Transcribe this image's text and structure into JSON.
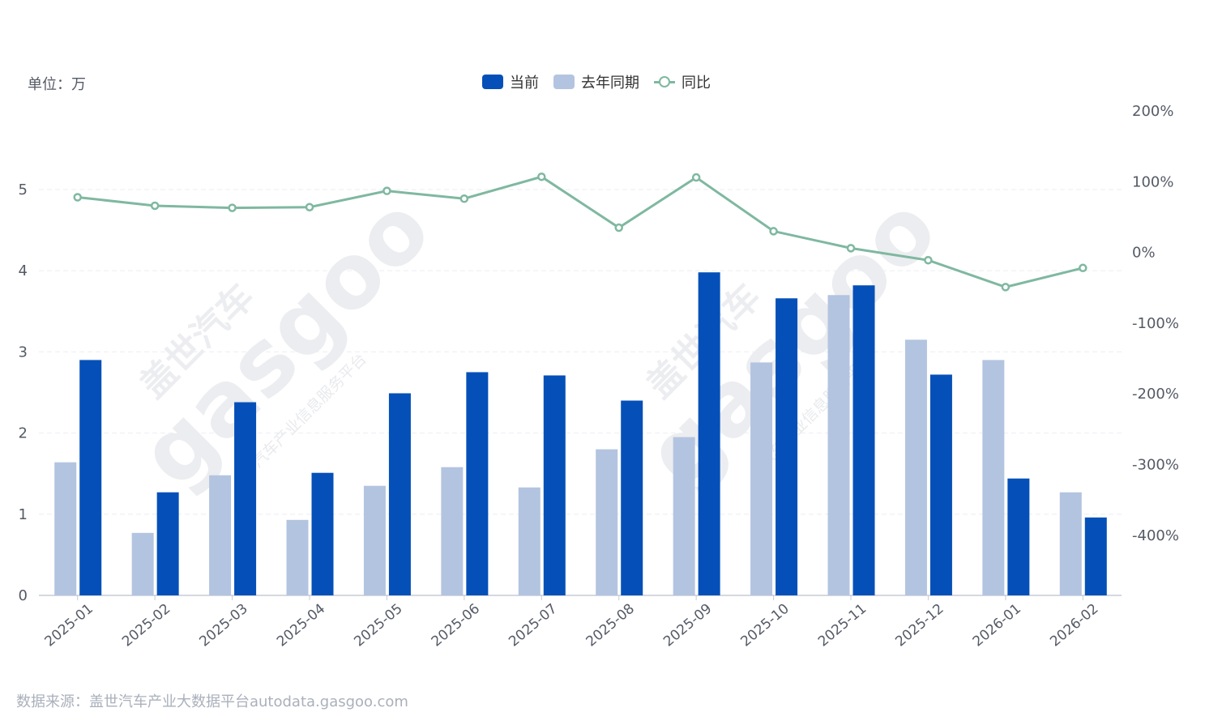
{
  "unit_label": "单位：万",
  "source": "数据来源：盖世汽车产业大数据平台autodata.gasgoo.com",
  "watermark": {
    "brand": "盖世汽车",
    "logo": "gasgoo",
    "tagline": "汽车产业信息服务平台"
  },
  "colors": {
    "current": "#0550b8",
    "last_year": "#b3c4e0",
    "yoy": "#7fb8a0"
  },
  "chart_data": {
    "type": "bar",
    "categories": [
      "2025-01",
      "2025-02",
      "2025-03",
      "2025-04",
      "2025-05",
      "2025-06",
      "2025-07",
      "2025-08",
      "2025-09",
      "2025-10",
      "2025-11",
      "2025-12",
      "2026-01",
      "2026-02"
    ],
    "series": [
      {
        "name": "当前",
        "type": "bar",
        "axis": "left",
        "values": [
          2.9,
          1.27,
          2.38,
          1.51,
          2.49,
          2.75,
          2.71,
          2.4,
          3.98,
          3.66,
          3.82,
          2.72,
          1.44,
          0.96
        ]
      },
      {
        "name": "去年同期",
        "type": "bar",
        "axis": "left",
        "values": [
          1.64,
          0.77,
          1.48,
          0.93,
          1.35,
          1.58,
          1.33,
          1.8,
          1.95,
          2.87,
          3.7,
          3.15,
          2.9,
          1.27
        ]
      },
      {
        "name": "同比",
        "type": "line",
        "axis": "right",
        "values": [
          78,
          66,
          63,
          64,
          87,
          76,
          107,
          35,
          106,
          30,
          6,
          -11,
          -49,
          -22
        ]
      }
    ],
    "y_left": {
      "ticks": [
        0,
        1,
        2,
        3,
        4,
        5
      ],
      "ylim": [
        0,
        5
      ]
    },
    "y_right": {
      "ticks": [
        "200%",
        "100%",
        "0%",
        "-100%",
        "-200%",
        "-300%",
        "-400%"
      ],
      "ylim": [
        -400,
        200
      ]
    },
    "legend": {
      "position": "top-center"
    },
    "grid": true
  }
}
